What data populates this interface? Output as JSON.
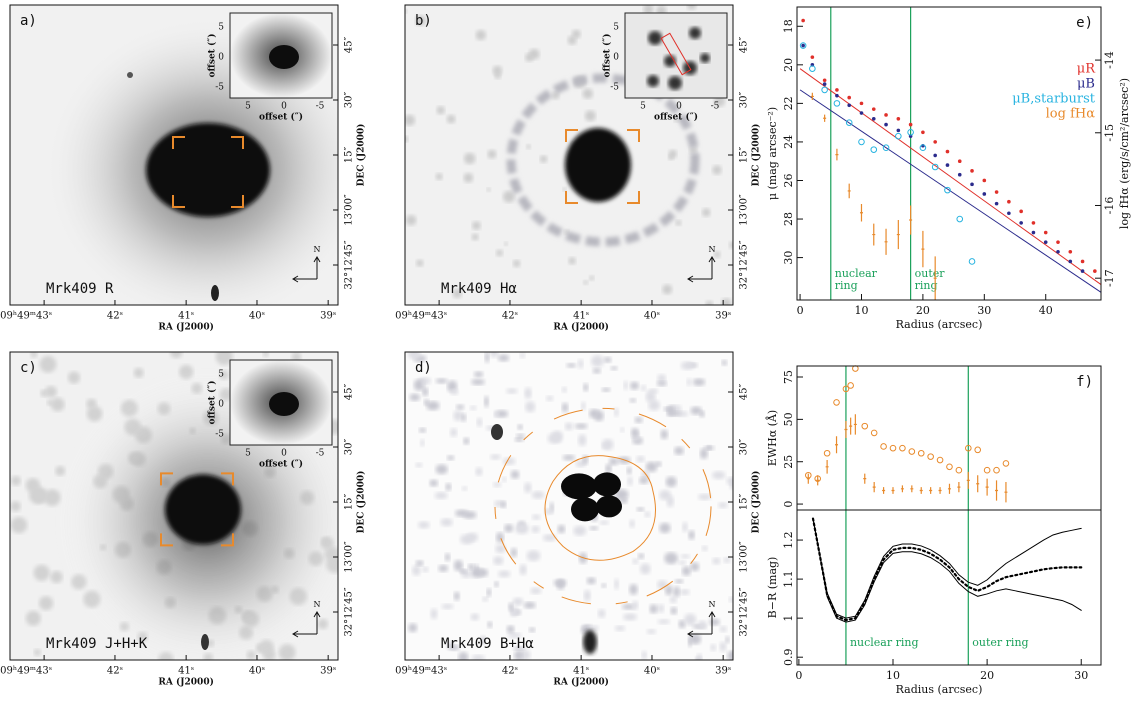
{
  "panels": [
    {
      "letter": "a)",
      "label": "Mrk409 R"
    },
    {
      "letter": "b)",
      "label": "Mrk409 Hα"
    },
    {
      "letter": "c)",
      "label": "Mrk409 J+H+K"
    },
    {
      "letter": "d)",
      "label": "Mrk409 B+Hα"
    }
  ],
  "sky_axes": {
    "ra_title": "RA (J2000)",
    "dec_title": "DEC (J2000)",
    "ra_ticks": [
      "09ʰ49ᵐ43ˢ",
      "42ˢ",
      "41ˢ",
      "40ˢ",
      "39ˢ"
    ],
    "dec_ticks": [
      "45″",
      "30″",
      "15″",
      "13′00″",
      "32°12′45″"
    ],
    "inset_title": "offset (″)",
    "inset_ticks": [
      5,
      0,
      -5
    ],
    "north": "N"
  },
  "chart_data": [
    {
      "type": "scatter",
      "label": "e)",
      "x_label": "Radius (arcsec)",
      "y_label": "μ (mag arcsec⁻²)",
      "y2_label": "log fHα (erg/s/cm²/arcsec²)",
      "x": [
        0.5,
        2,
        4,
        6,
        8,
        10,
        12,
        14,
        16,
        18,
        20,
        22,
        24,
        26,
        28,
        30,
        32,
        34,
        36,
        38,
        40,
        42,
        44,
        46,
        48
      ],
      "series": [
        {
          "name": "μR",
          "color": "#e0302a",
          "marker": "dot",
          "values": [
            17.7,
            19.6,
            20.8,
            21.3,
            21.7,
            22.0,
            22.3,
            22.6,
            22.8,
            23.1,
            23.5,
            24.0,
            24.5,
            25.0,
            25.5,
            26.0,
            26.6,
            27.1,
            27.6,
            28.2,
            28.7,
            29.2,
            29.7,
            30.2,
            30.7
          ]
        },
        {
          "name": "μB",
          "color": "#2b2b8c",
          "marker": "dot",
          "values": [
            19.0,
            20.0,
            21.0,
            21.6,
            22.1,
            22.5,
            22.8,
            23.1,
            23.4,
            23.7,
            24.2,
            24.7,
            25.2,
            25.7,
            26.2,
            26.7,
            27.2,
            27.7,
            28.2,
            28.7,
            29.2,
            29.7,
            30.2,
            30.7,
            null
          ]
        },
        {
          "name": "μB,starburst",
          "color": "#27b3e0",
          "marker": "circle",
          "values": [
            19.0,
            20.2,
            21.3,
            22.0,
            23.0,
            24.0,
            24.4,
            24.3,
            23.7,
            23.5,
            24.3,
            25.3,
            26.5,
            28.0,
            30.2,
            null,
            null,
            null,
            null,
            null,
            null,
            null,
            null,
            null,
            null
          ]
        },
        {
          "name": "log fHα",
          "color": "#e88a2c",
          "marker": "errbar",
          "axis": "y2",
          "values": [
            null,
            -14.5,
            -14.8,
            -15.3,
            -15.8,
            -16.1,
            -16.4,
            -16.5,
            -16.4,
            -16.2,
            -16.6,
            -17.0,
            null,
            null,
            null,
            null,
            null,
            null,
            null,
            null,
            null,
            null,
            null,
            null,
            null
          ],
          "errors": [
            null,
            0.05,
            0.05,
            0.08,
            0.1,
            0.12,
            0.15,
            0.18,
            0.2,
            0.2,
            0.25,
            0.3,
            null,
            null,
            null,
            null,
            null,
            null,
            null,
            null,
            null,
            null,
            null,
            null,
            null
          ]
        }
      ],
      "fit_lines": [
        {
          "color": "#e0302a",
          "x": [
            0,
            49
          ],
          "values": [
            20.2,
            31.4
          ]
        },
        {
          "color": "#2b2b8c",
          "x": [
            0,
            49
          ],
          "values": [
            21.3,
            31.8
          ]
        }
      ],
      "rings": [
        {
          "x": 5,
          "label": [
            "nuclear",
            "ring"
          ]
        },
        {
          "x": 18,
          "label": [
            "outer",
            "ring"
          ]
        }
      ],
      "ring_color": "#1aa05a",
      "xlim": [
        -0.5,
        49
      ],
      "xticks": [
        0,
        10,
        20,
        30,
        40
      ],
      "ylim": [
        32.2,
        17
      ],
      "yticks": [
        18,
        20,
        22,
        24,
        26,
        28,
        30
      ],
      "y2lim": [
        -17.3,
        -13.27
      ],
      "y2ticks": [
        -17,
        -16,
        -15,
        -14
      ]
    },
    {
      "type": "scatter",
      "label": "f)",
      "y_label": "EWHα (Å)",
      "series": [
        {
          "color": "#e88a2c",
          "marker": "circle",
          "x": [
            1,
            2,
            3,
            4,
            5,
            5.5,
            6,
            7,
            8,
            9,
            10,
            11,
            12,
            13,
            14,
            15,
            16,
            17,
            18,
            19,
            20,
            21,
            22
          ],
          "values": [
            17,
            15,
            30,
            60,
            68,
            70,
            80,
            46,
            42,
            34,
            33,
            33,
            31,
            30,
            28,
            26,
            22,
            20,
            33,
            32,
            20,
            20,
            24
          ]
        },
        {
          "color": "#e88a2c",
          "marker": "errbar",
          "x": [
            1,
            2,
            3,
            4,
            5,
            5.5,
            6,
            7,
            8,
            9,
            10,
            11,
            12,
            13,
            14,
            15,
            16,
            17,
            18,
            19,
            20,
            21,
            22
          ],
          "values": [
            15,
            14,
            22,
            35,
            44,
            46,
            47,
            15,
            10,
            8,
            8,
            9,
            9,
            8,
            8,
            8,
            9,
            10,
            14,
            12,
            10,
            8,
            7
          ],
          "errors": [
            3,
            3,
            4,
            5,
            5,
            5,
            6,
            3,
            3,
            2,
            2,
            2,
            2,
            2,
            2,
            2,
            3,
            3,
            5,
            5,
            5,
            6,
            6
          ]
        }
      ],
      "rings": [
        {
          "x": 5
        },
        {
          "x": 18
        }
      ],
      "ring_color": "#1aa05a",
      "xlim": [
        -0.2,
        32.1
      ],
      "ylim": [
        -3.5,
        81.5
      ],
      "yticks": [
        0,
        25,
        50,
        75
      ]
    },
    {
      "type": "line",
      "x_label": "Radius (arcsec)",
      "y_label": "B−R (mag)",
      "x": [
        1.5,
        2,
        3,
        4,
        5,
        6,
        7,
        8,
        9,
        10,
        11,
        12,
        13,
        14,
        15,
        16,
        17,
        18,
        19,
        20,
        21,
        22,
        23,
        24,
        25,
        26,
        27,
        28,
        29,
        30
      ],
      "series": [
        {
          "color": "#000000",
          "style": "dotted",
          "values": [
            1.255,
            1.19,
            1.06,
            1.005,
            0.995,
            1.0,
            1.04,
            1.1,
            1.15,
            1.175,
            1.18,
            1.18,
            1.175,
            1.165,
            1.15,
            1.13,
            1.1,
            1.08,
            1.07,
            1.08,
            1.095,
            1.105,
            1.11,
            1.115,
            1.12,
            1.125,
            1.128,
            1.13,
            1.13,
            1.13
          ]
        },
        {
          "color": "#000000",
          "style": "solid",
          "values": [
            1.255,
            1.19,
            1.065,
            1.01,
            1.0,
            1.005,
            1.046,
            1.107,
            1.158,
            1.184,
            1.19,
            1.19,
            1.185,
            1.175,
            1.16,
            1.14,
            1.111,
            1.092,
            1.084,
            1.098,
            1.12,
            1.14,
            1.155,
            1.17,
            1.185,
            1.2,
            1.213,
            1.22,
            1.225,
            1.23
          ]
        },
        {
          "color": "#000000",
          "style": "solid",
          "values": [
            1.255,
            1.19,
            1.055,
            1.0,
            0.99,
            0.995,
            1.034,
            1.093,
            1.142,
            1.166,
            1.17,
            1.17,
            1.165,
            1.155,
            1.14,
            1.12,
            1.089,
            1.068,
            1.056,
            1.062,
            1.07,
            1.075,
            1.07,
            1.065,
            1.06,
            1.055,
            1.05,
            1.045,
            1.035,
            1.02
          ]
        }
      ],
      "rings": [
        {
          "x": 5,
          "label": [
            "nuclear ring"
          ]
        },
        {
          "x": 18,
          "label": [
            "outer ring"
          ]
        }
      ],
      "ring_color": "#1aa05a",
      "xlim": [
        -0.2,
        32.1
      ],
      "xticks": [
        0,
        10,
        20,
        30
      ],
      "ylim": [
        0.88,
        1.277
      ],
      "yticks": [
        0.9,
        1,
        1.1,
        1.2
      ]
    }
  ]
}
